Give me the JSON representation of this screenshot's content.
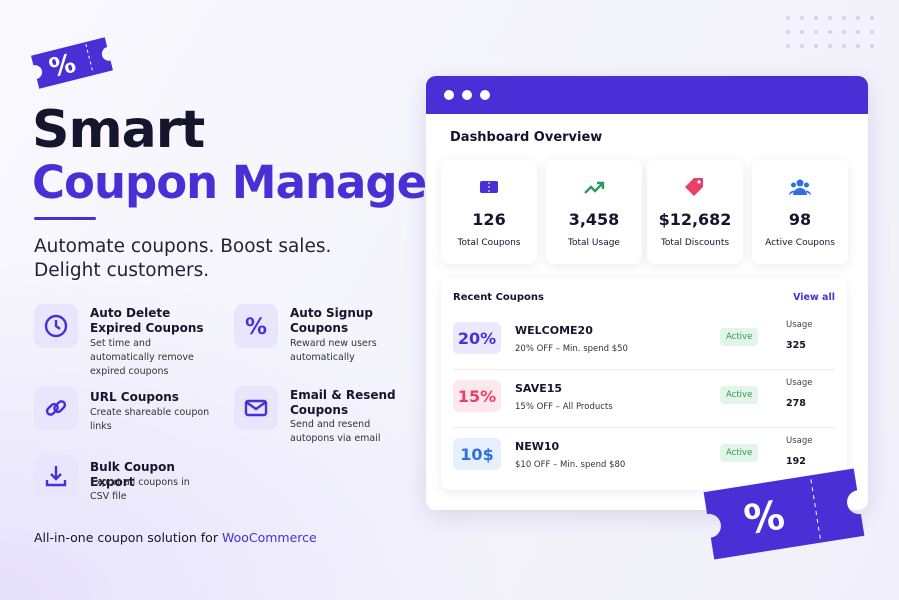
{
  "header": {
    "title_line1": "Smart",
    "title_line2": "Coupon Manager",
    "tagline_line1": "Automate coupons. Boost sales.",
    "tagline_line2": "Delight customers."
  },
  "features": [
    {
      "title": "Auto Delete Expired Coupons",
      "description": "Set time and automatically remove expired coupons"
    },
    {
      "title": "Auto Signup Coupons",
      "description": "Reward new users automatically"
    },
    {
      "title": "URL Coupons",
      "description": "Create shareable coupon links"
    },
    {
      "title": "Email & Resend Coupons",
      "description": "Send and resend autopons via email"
    },
    {
      "title": "Bulk Coupon Export",
      "description": "Export all coupons in CSV file"
    }
  ],
  "footer": {
    "text": "All-in-one coupon solution for",
    "brand": "WooCommerce"
  },
  "dashboard": {
    "title": "Dashboard Overview",
    "stats": [
      {
        "value": "126",
        "label": "Total Coupons"
      },
      {
        "value": "3,458",
        "label": "Total Usage"
      },
      {
        "value": "$12,682",
        "label": "Total Discounts"
      },
      {
        "value": "98",
        "label": "Active Coupons"
      }
    ],
    "recent_title": "Recent Coupons",
    "view_all": "View all",
    "coupons": [
      {
        "badge": "20%",
        "code": "WELCOME20",
        "description": "20% OFF – Min. spend $50",
        "status": "Active",
        "usage_label": "Usage",
        "usage": "325"
      },
      {
        "badge": "15%",
        "code": "SAVE15",
        "description": "15% OFF – All Products",
        "status": "Active",
        "usage_label": "Usage",
        "usage": "278"
      },
      {
        "badge": "10$",
        "code": "NEW10",
        "description": "$10 OFF – Min. spend $80",
        "status": "Active",
        "usage_label": "Usage",
        "usage": "192"
      }
    ]
  }
}
